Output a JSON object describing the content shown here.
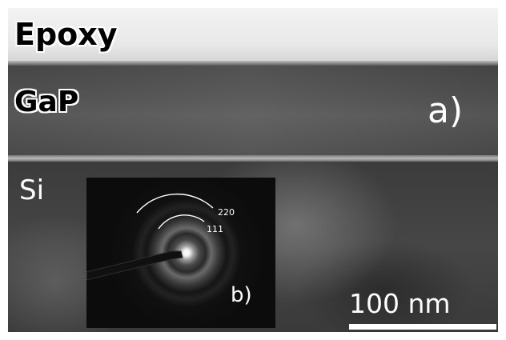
{
  "labels": {
    "epoxy": "Epoxy",
    "gap": "GaP",
    "si": "Si",
    "panel_a": "a)",
    "panel_b": "b)"
  },
  "diffraction_inset": {
    "rings": [
      {
        "index": "220"
      },
      {
        "index": "111"
      }
    ]
  },
  "scale_bar": {
    "text": "100 nm"
  },
  "colors": {
    "label_text": "#ffffff",
    "ring": "#ffffff"
  }
}
